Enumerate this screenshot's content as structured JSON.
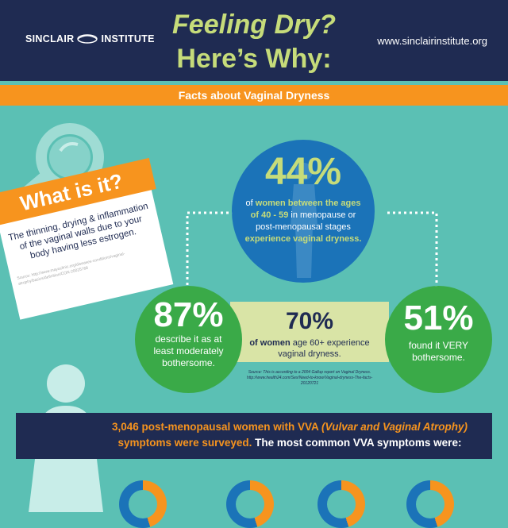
{
  "header": {
    "logo_left": "SINCLAIR",
    "logo_right": "INSTITUTE",
    "title_line1": "Feeling Dry?",
    "title_line2": "Here’s Why:",
    "website": "www.sinclairinstitute.org"
  },
  "band": {
    "label": "Facts about Vaginal Dryness"
  },
  "what_is_it": {
    "heading": "What is it?",
    "body": "The thinning, drying & inflammation of the vaginal walls due to your body having less estrogen.",
    "source": "Source: http://www.mayoclinic.org/diseases-conditions/vaginal-atrophy/basics/definition/CON-20025768"
  },
  "stat_44": {
    "percent": "44%",
    "line1": "of",
    "line1_hl": "women between the ages of 40 - 59",
    "line2": "in menopause or post-menopausal stages",
    "line3_hl": "experience vaginal dryness."
  },
  "stat_87": {
    "percent": "87%",
    "text": "describe it as at least moderately bothersome."
  },
  "stat_70": {
    "percent": "70%",
    "bold": "of women",
    "text": "age 60+ experience vaginal dryness."
  },
  "stat_51": {
    "percent": "51%",
    "text": "found it VERY bothersome."
  },
  "source_gallup": "Source: This is according to a 2004 Gallup report on Vaginal Dryness. http://www.health24.com/Sex/Need-to-know/Vaginal-dryness-The-facts-20120721",
  "survey": {
    "number_part": "3,046 post-menopausal women with VVA",
    "paren": "(Vulvar and Vaginal Atrophy)",
    "part2": "symptoms were surveyed.",
    "part3": "The most common VVA symptoms were:"
  },
  "colors": {
    "navy": "#1f2b52",
    "teal": "#5bc0b4",
    "orange": "#f7941e",
    "blue": "#1b73b8",
    "green": "#3aaa48",
    "lime": "#c6dc7a"
  }
}
